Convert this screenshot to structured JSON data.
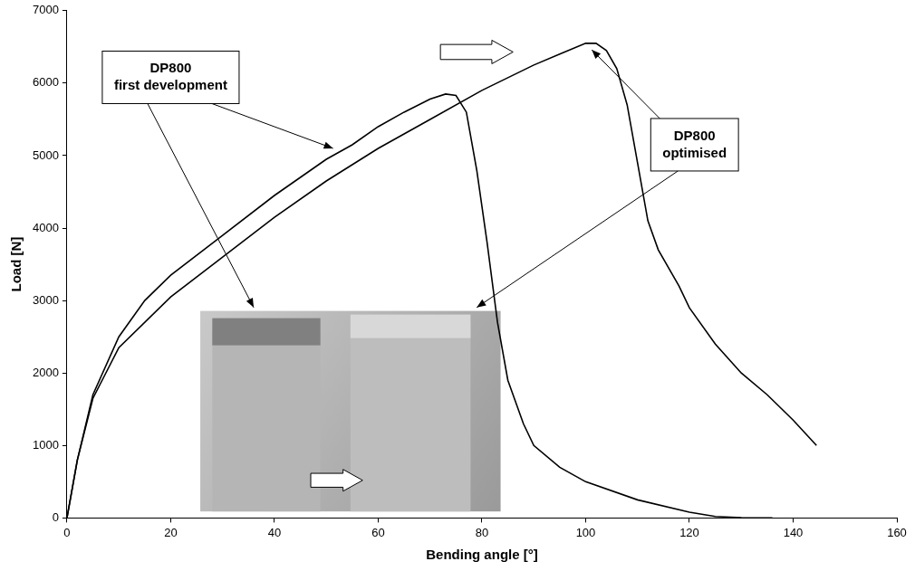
{
  "chart_data": {
    "type": "line",
    "x_label": "Bending angle [°]",
    "y_label": "Load [N]",
    "xlim": [
      0,
      160
    ],
    "xticks": [
      0,
      20,
      40,
      60,
      80,
      100,
      120,
      140,
      160
    ],
    "ylim": [
      0,
      7000
    ],
    "yticks": [
      0,
      1000,
      2000,
      3000,
      4000,
      5000,
      6000,
      7000
    ],
    "grid": false,
    "series": [
      {
        "name": "DP800 first development",
        "color": "#000000",
        "x": [
          0,
          2,
          5,
          10,
          15,
          20,
          30,
          40,
          50,
          55,
          60,
          65,
          70,
          73,
          75,
          77,
          79,
          81,
          83,
          85,
          88,
          90,
          95,
          100,
          110,
          120,
          125,
          130,
          136
        ],
        "values": [
          0,
          800,
          1700,
          2500,
          3000,
          3350,
          3900,
          4450,
          4950,
          5150,
          5400,
          5600,
          5780,
          5850,
          5830,
          5600,
          4800,
          3800,
          2700,
          1900,
          1300,
          1000,
          700,
          500,
          250,
          80,
          20,
          5,
          0
        ]
      },
      {
        "name": "DP800 optimised",
        "color": "#000000",
        "x": [
          0,
          2,
          5,
          10,
          20,
          30,
          40,
          50,
          60,
          70,
          80,
          90,
          95,
          100,
          102,
          104,
          106,
          108,
          110,
          112,
          114,
          118,
          120,
          125,
          130,
          135,
          140,
          144.5
        ],
        "values": [
          0,
          800,
          1650,
          2350,
          3050,
          3600,
          4150,
          4650,
          5100,
          5500,
          5900,
          6250,
          6400,
          6550,
          6550,
          6450,
          6200,
          5700,
          4900,
          4100,
          3700,
          3200,
          2900,
          2400,
          2000,
          1700,
          1350,
          1000
        ]
      }
    ]
  }
}
